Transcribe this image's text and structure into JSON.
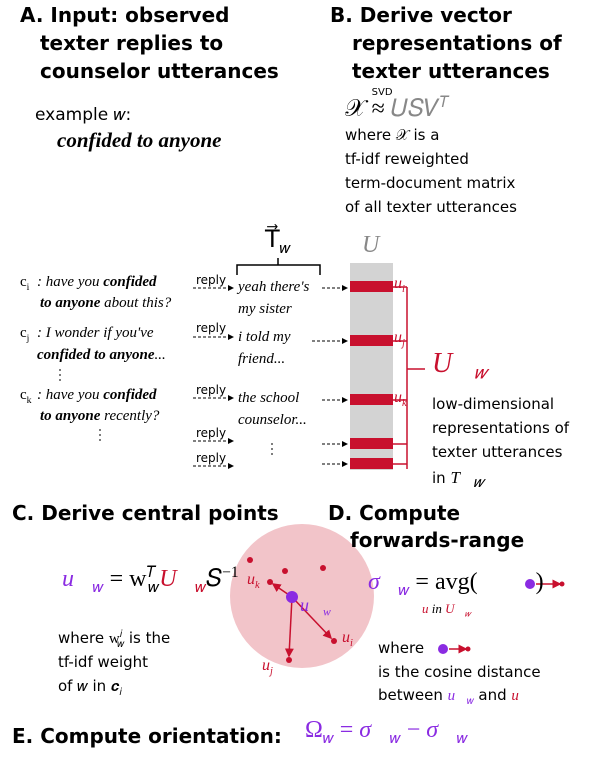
{
  "a": {
    "title": [
      "A. Input: observed",
      "texter replies to",
      "counselor utterances"
    ],
    "example": "example 𝑤:",
    "phrase": "confided to anyone"
  },
  "b": {
    "title": [
      "B. Derive vector",
      "representations of",
      "texter utterances"
    ],
    "formula": [
      "𝒳",
      "SVD",
      "≈",
      "𝑈𝑆𝑉",
      "𝑇"
    ],
    "description": [
      "where 𝒳 is a",
      "tf-idf reweighted",
      "term-document matrix",
      "of all texter utterances"
    ]
  },
  "matrix": {
    "t_label": [
      "T⃗",
      "𝑤"
    ],
    "u_label": "U",
    "utterances": [
      {
        "id": "c",
        "id_sub": "i",
        "line1": [
          "have you ",
          "confided"
        ],
        "line2": [
          "to anyone",
          " about this?"
        ],
        "reply": "reply",
        "response": [
          "yeah there's",
          "my sister"
        ],
        "u_label": [
          "u",
          "i"
        ]
      },
      {
        "id": "c",
        "id_sub": "j",
        "line1": [
          "I wonder if you've"
        ],
        "line2": [
          "confided to anyone",
          "..."
        ],
        "reply": "reply",
        "response": [
          "i told my",
          "friend..."
        ],
        "u_label": [
          "u",
          "j"
        ]
      },
      {
        "id": "c",
        "id_sub": "k",
        "line1": [
          "have you ",
          "confided"
        ],
        "line2": [
          "to anyone",
          " recently?"
        ],
        "reply": "reply",
        "response": [
          "the school",
          "counselor..."
        ],
        "u_label": [
          "u",
          "k"
        ]
      }
    ],
    "extra_replies": [
      "reply",
      "reply"
    ],
    "uw_label": [
      "U⃗",
      "𝑤"
    ],
    "uw_description": [
      "low-dimensional",
      "representations of",
      "texter utterances",
      "in"
    ],
    "uw_description_var": [
      "T⃗",
      "𝑤"
    ]
  },
  "c": {
    "title": "C. Derive central points",
    "formula": [
      "u⃗",
      "𝑤",
      "= w",
      "𝑇",
      "𝑤",
      "U⃗",
      "𝑤",
      "𝑆",
      "−1"
    ],
    "note1": [
      "where ",
      "w",
      "𝑖",
      "𝑤",
      " is the"
    ],
    "note2": "tf-idf weight",
    "note3": [
      "of ",
      "𝑤",
      " in ",
      "𝒄",
      "𝑖"
    ],
    "circle": {
      "uk": [
        "u",
        "k"
      ],
      "uw": [
        "u⃗",
        "w"
      ],
      "ui": [
        "u",
        "i"
      ],
      "uj": [
        "u",
        "j"
      ]
    }
  },
  "d": {
    "title": [
      "D. Compute",
      "forwards-range"
    ],
    "formula": [
      "σ⃗",
      "𝑤",
      "= avg(",
      ")"
    ],
    "sub_note": [
      "u",
      " in ",
      "U⃗",
      "𝑤"
    ],
    "note1": "where",
    "note2": "is the cosine distance",
    "note3": [
      "between ",
      "u⃗",
      "𝑤",
      " and ",
      "u"
    ]
  },
  "e": {
    "title": "E. Compute orientation:",
    "formula": [
      "Ω",
      "𝑤",
      " = ",
      "σ⃖",
      "𝑤",
      " − ",
      "σ⃗",
      "𝑤"
    ]
  }
}
